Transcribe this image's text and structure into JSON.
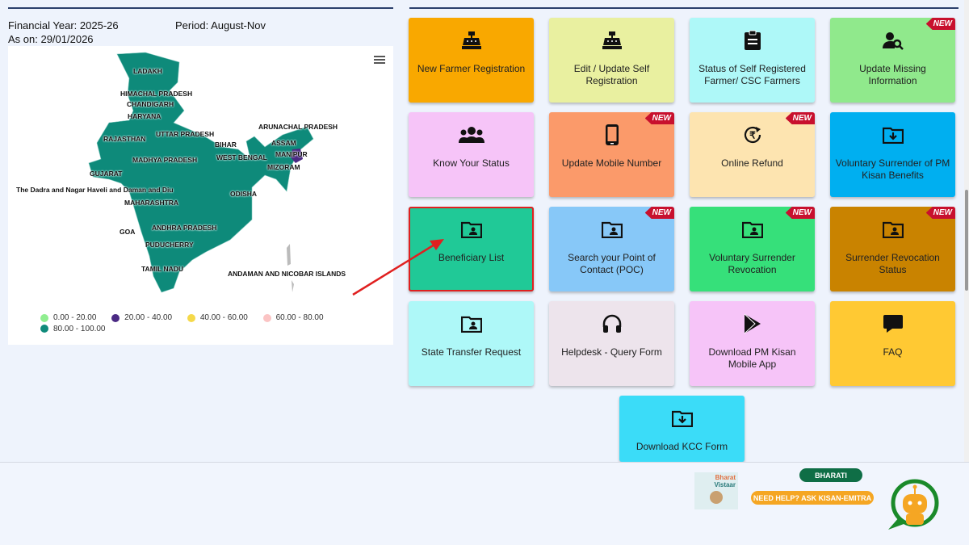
{
  "header": {
    "financial_year": "Financial Year: 2025-26",
    "period": "Period: August-Nov",
    "as_on": "As on: 29/01/2026"
  },
  "map": {
    "states": [
      "LADAKH",
      "HIMACHAL PRADESH",
      "CHANDIGARH",
      "HARYANA",
      "RAJASTHAN",
      "UTTAR PRADESH",
      "BIHAR",
      "ARUNACHAL PRADESH",
      "ASSAM",
      "MANIPUR",
      "WEST BENGAL",
      "MIZORAM",
      "GUJARAT",
      "MADHYA PRADESH",
      "The Dadra and Nagar Haveli and Daman and Diu",
      "ODISHA",
      "MAHARASHTRA",
      "GOA",
      "ANDHRA PRADESH",
      "PUDUCHERRY",
      "TAMIL NADU",
      "ANDAMAN AND NICOBAR ISLANDS"
    ],
    "legend": [
      {
        "label": "0.00 - 20.00",
        "color": "#90ee90"
      },
      {
        "label": "20.00 - 40.00",
        "color": "#4b2a84"
      },
      {
        "label": "40.00 - 60.00",
        "color": "#f5d94a"
      },
      {
        "label": "60.00 - 80.00",
        "color": "#fbc4c4"
      },
      {
        "label": "80.00 - 100.00",
        "color": "#0e8a7a"
      }
    ]
  },
  "tiles": [
    {
      "label": "New Farmer Registration",
      "color": "#f9a800",
      "icon": "cash-register-icon",
      "new": false
    },
    {
      "label": "Edit / Update Self Registration",
      "color": "#e9f0a0",
      "icon": "cash-register-icon",
      "new": false
    },
    {
      "label": "Status of Self Registered Farmer/ CSC Farmers",
      "color": "#aef8f8",
      "icon": "clipboard-icon",
      "new": false
    },
    {
      "label": "Update Missing Information",
      "color": "#90e98c",
      "icon": "user-search-icon",
      "new": true
    },
    {
      "label": "Know Your Status",
      "color": "#f6c4f8",
      "icon": "users-icon",
      "new": false
    },
    {
      "label": "Update Mobile Number",
      "color": "#fb9a6a",
      "icon": "mobile-icon",
      "new": true
    },
    {
      "label": "Online Refund",
      "color": "#fde4b0",
      "icon": "rupee-refund-icon",
      "new": true
    },
    {
      "label": "Voluntary Surrender of PM Kisan Benefits",
      "color": "#00aff0",
      "icon": "folder-download-icon",
      "new": false
    },
    {
      "label": "Beneficiary List",
      "color": "#20c997",
      "icon": "folder-user-icon",
      "new": false
    },
    {
      "label": "Search your Point of Contact (POC)",
      "color": "#87c8f8",
      "icon": "folder-user-icon",
      "new": true
    },
    {
      "label": "Voluntary Surrender Revocation",
      "color": "#36e07a",
      "icon": "folder-user-icon",
      "new": true
    },
    {
      "label": "Surrender Revocation Status",
      "color": "#c98300",
      "icon": "folder-user-icon",
      "new": true
    },
    {
      "label": "State Transfer Request",
      "color": "#aef8f8",
      "icon": "folder-user-icon",
      "new": false
    },
    {
      "label": "Helpdesk - Query Form",
      "color": "#ede4ec",
      "icon": "headphones-icon",
      "new": false
    },
    {
      "label": "Download PM Kisan Mobile App",
      "color": "#f6c4f8",
      "icon": "play-store-icon",
      "new": false
    },
    {
      "label": "FAQ",
      "color": "#ffc933",
      "icon": "chat-icon",
      "new": false
    },
    {
      "label": "Download KCC Form",
      "color": "#3bdcf8",
      "icon": "folder-download-icon",
      "new": false
    }
  ],
  "new_badge": "NEW",
  "chatbot": {
    "bharati": "BHARATI",
    "help": "NEED HELP? ASK KISAN-EMITRA",
    "brand1": "Bharat",
    "brand2": "Vistaar"
  }
}
